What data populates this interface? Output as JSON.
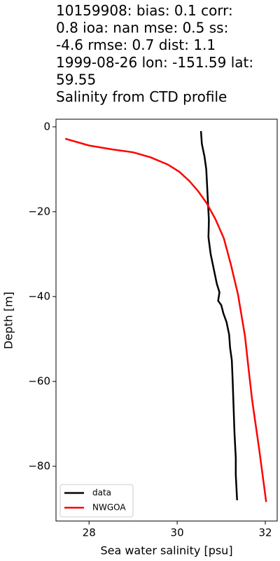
{
  "chart_data": {
    "type": "line",
    "title": [
      "10159908: bias: 0.1  corr:",
      "0.8  ioa: nan  mse: 0.5  ss:",
      "-4.6  rmse: 0.7  dist: 1.1",
      "1999-08-26 lon: -151.59 lat:",
      "59.55",
      "Salinity from CTD profile"
    ],
    "x_label": "Sea water salinity [psu]",
    "y_label": "Depth [m]",
    "xlim": [
      27.25,
      32.27
    ],
    "xticks": [
      28,
      30,
      32
    ],
    "ylim": [
      -92.9,
      1.8
    ],
    "yticks": [
      0,
      -20,
      -40,
      -60,
      -80
    ],
    "legend": "lower left",
    "series": [
      {
        "name": "data",
        "color": "#000000",
        "x": [
          30.54,
          30.56,
          30.62,
          30.66,
          30.68,
          30.7,
          30.72,
          30.71,
          30.76,
          30.84,
          30.9,
          30.96,
          30.93,
          31.0,
          31.05,
          31.12,
          31.18,
          31.2,
          31.24,
          31.26,
          31.28,
          31.3,
          31.33,
          31.33,
          31.36
        ],
        "values": [
          -1,
          -4,
          -7,
          -10,
          -14,
          -18,
          -22,
          -26,
          -30,
          -34,
          -37,
          -39,
          -41,
          -42,
          -44,
          -46,
          -49,
          -52,
          -55,
          -60,
          -66,
          -72,
          -78,
          -82,
          -88
        ]
      },
      {
        "name": "NWGOA",
        "color": "#ff0000",
        "x": [
          27.46,
          28.0,
          28.52,
          29.0,
          29.4,
          29.79,
          30.05,
          30.27,
          30.48,
          30.67,
          30.87,
          31.06,
          31.22,
          31.38,
          31.54,
          31.62,
          31.7,
          31.86,
          32.02
        ],
        "values": [
          -2.8,
          -4.4,
          -5.3,
          -6,
          -7.2,
          -8.9,
          -10.6,
          -12.7,
          -15.2,
          -18,
          -21.8,
          -26.3,
          -32.5,
          -39.5,
          -49.4,
          -57,
          -64.3,
          -75.9,
          -88.4
        ]
      }
    ]
  }
}
